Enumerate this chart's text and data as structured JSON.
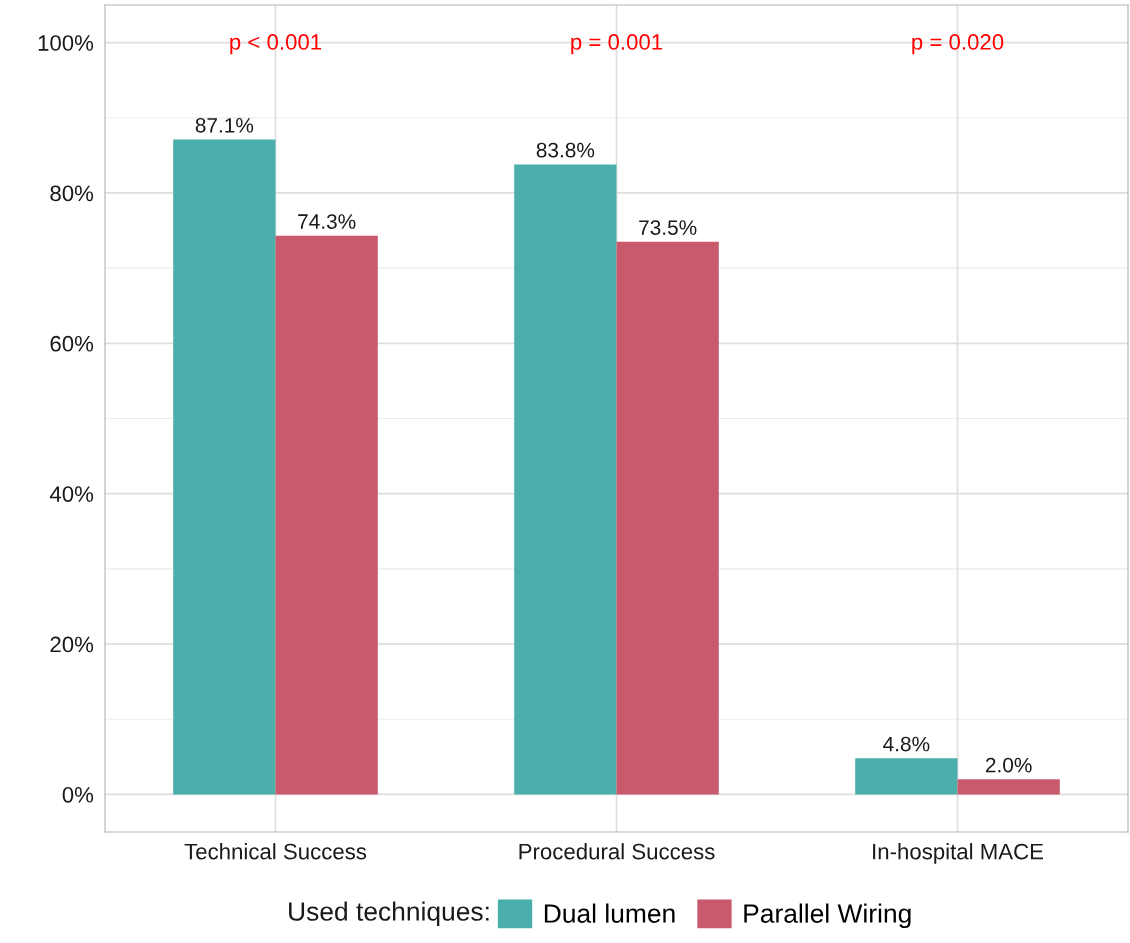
{
  "chart_data": {
    "type": "bar",
    "categories": [
      "Technical Success",
      "Procedural Success",
      "In-hospital MACE"
    ],
    "series": [
      {
        "name": "Dual lumen",
        "color": "#4aaeaa",
        "values": [
          87.1,
          83.8,
          4.8
        ],
        "value_labels": [
          "87.1%",
          "83.8%",
          "4.8%"
        ]
      },
      {
        "name": "Parallel Wiring",
        "color": "#c95a6e",
        "values": [
          74.3,
          73.5,
          2.0
        ],
        "value_labels": [
          "74.3%",
          "73.5%",
          "2.0%"
        ]
      }
    ],
    "legend_title": "Used techniques:",
    "legend": "bottom",
    "ylim": [
      -5,
      105
    ],
    "yticks": [
      {
        "value": 0,
        "label": "0%"
      },
      {
        "value": 10,
        "label": null
      },
      {
        "value": 20,
        "label": "20%"
      },
      {
        "value": 30,
        "label": null
      },
      {
        "value": 40,
        "label": "40%"
      },
      {
        "value": 50,
        "label": null
      },
      {
        "value": 60,
        "label": "60%"
      },
      {
        "value": 70,
        "label": null
      },
      {
        "value": 80,
        "label": "80%"
      },
      {
        "value": 90,
        "label": null
      },
      {
        "value": 100,
        "label": "100%"
      }
    ],
    "grid": true,
    "annotations": [
      "p < 0.001",
      "p = 0.001",
      "p = 0.020"
    ]
  }
}
